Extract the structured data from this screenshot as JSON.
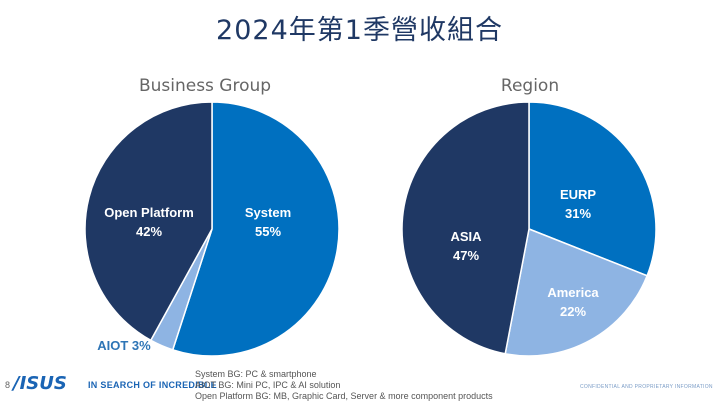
{
  "page_title": "2024年第1季營收組合",
  "chart_data": [
    {
      "type": "pie",
      "title": "Business Group",
      "slices": [
        {
          "label": "System",
          "value": 55,
          "value_text": "55%",
          "color": "#0070c0"
        },
        {
          "label": "AIOT",
          "value": 3,
          "value_text": "3%",
          "color": "#8eb4e3"
        },
        {
          "label": "Open Platform",
          "value": 42,
          "value_text": "42%",
          "color": "#1f3864"
        }
      ]
    },
    {
      "type": "pie",
      "title": "Region",
      "slices": [
        {
          "label": "EURP",
          "value": 31,
          "value_text": "31%",
          "color": "#0070c0"
        },
        {
          "label": "America",
          "value": 22,
          "value_text": "22%",
          "color": "#8eb4e3"
        },
        {
          "label": "ASIA",
          "value": 47,
          "value_text": "47%",
          "color": "#1f3864"
        }
      ]
    }
  ],
  "footer": {
    "page_number": "8",
    "logo": "/ISUS",
    "tagline": "IN SEARCH OF INCREDIBLE",
    "notes": [
      "System BG: PC & smartphone",
      "AIOT BG: Mini PC, IPC & AI solution",
      "Open Platform BG: MB, Graphic Card, Server & more component products"
    ],
    "confidential": "CONFIDENTIAL AND PROPRIETARY INFORMATION"
  }
}
